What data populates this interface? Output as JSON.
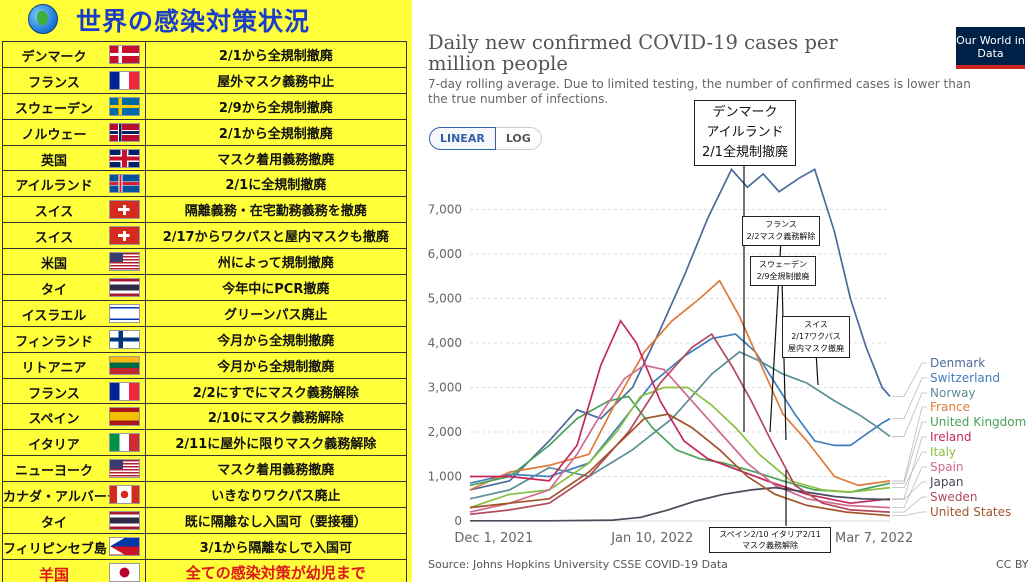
{
  "left_panel": {
    "title": "世界の感染対策状況",
    "rows": [
      {
        "country": "デンマーク",
        "flag": "denmark",
        "measure": "2/1から全規制撤廃"
      },
      {
        "country": "フランス",
        "flag": "france",
        "measure": "屋外マスク義務中止"
      },
      {
        "country": "スウェーデン",
        "flag": "sweden",
        "measure": "2/9から全規制撤廃"
      },
      {
        "country": "ノルウェー",
        "flag": "norway",
        "measure": "2/1から全規制撤廃"
      },
      {
        "country": "英国",
        "flag": "uk",
        "measure": "マスク着用義務撤廃"
      },
      {
        "country": "アイルランド",
        "flag": "iceland",
        "measure": "2/1に全規制撤廃"
      },
      {
        "country": "スイス",
        "flag": "switzerland",
        "measure": "隔離義務・在宅勤務義務を撤廃"
      },
      {
        "country": "スイス",
        "flag": "switzerland",
        "measure": "2/17からワクパスと屋内マスクも撤廃"
      },
      {
        "country": "米国",
        "flag": "usa",
        "measure": "州によって規制撤廃"
      },
      {
        "country": "タイ",
        "flag": "thailand",
        "measure": "今年中にPCR撤廃"
      },
      {
        "country": "イスラエル",
        "flag": "israel",
        "measure": "グリーンパス廃止"
      },
      {
        "country": "フィンランド",
        "flag": "finland",
        "measure": "今月から全規制撤廃"
      },
      {
        "country": "リトアニア",
        "flag": "lithuania",
        "measure": "今月から全規制撤廃"
      },
      {
        "country": "フランス",
        "flag": "france",
        "measure": "2/2にすでにマスク義務解除"
      },
      {
        "country": "スペイン",
        "flag": "spain",
        "measure": "2/10にマスク義務解除"
      },
      {
        "country": "イタリア",
        "flag": "italy",
        "measure": "2/11に屋外に限りマスク義務解除"
      },
      {
        "country": "ニューヨーク",
        "flag": "usa",
        "measure": "マスク着用義務撤廃"
      },
      {
        "country": "カナダ・アルバータ州",
        "flag": "canada",
        "measure": "いきなりワクパス廃止"
      },
      {
        "country": "タイ",
        "flag": "thailand",
        "measure": "既に隔離なし入国可（要接種）"
      },
      {
        "country": "フィリピンセブ島",
        "flag": "philippines",
        "measure": "3/1から隔離なしで入国可"
      },
      {
        "country": "羊国",
        "flag": "japan",
        "measure": "全ての感染対策が幼児まで"
      }
    ]
  },
  "chart_header": {
    "title": "Daily new confirmed COVID-19 cases per million people",
    "subtitle": "7-day rolling average. Due to limited testing, the number of confirmed cases is lower than the true number of infections.",
    "logo": "Our World in Data",
    "scale_linear": "LINEAR",
    "scale_log": "LOG",
    "source": "Source: Johns Hopkins University CSSE COVID-19 Data",
    "license": "CC BY"
  },
  "annotations": {
    "big": [
      "デンマーク",
      "アイルランド",
      "2/1全規制撤廃"
    ],
    "france": [
      "フランス",
      "2/2マスク義務解除"
    ],
    "sweden": [
      "スウェーデン",
      "2/9全規制撤廃"
    ],
    "switzerland": [
      "スイス",
      "2/17ワクパス",
      "屋内マスク撤廃"
    ],
    "spain_italy": [
      "スペイン2/10 イタリア2/11",
      "マスク義務解除"
    ]
  },
  "chart_data": {
    "type": "line",
    "title": "Daily new confirmed COVID-19 cases per million people",
    "ylim": [
      0,
      8000
    ],
    "yticks": [
      0,
      1000,
      2000,
      3000,
      4000,
      5000,
      6000,
      7000
    ],
    "ytick_labels": [
      "0",
      "1,000",
      "2,000",
      "3,000",
      "4,000",
      "5,000",
      "6,000",
      "7,000"
    ],
    "xlim": [
      "2021-11-25",
      "2022-03-11"
    ],
    "xticks": [
      "2021-12-01",
      "2022-01-10",
      "2022-03-07"
    ],
    "xtick_labels": [
      "Dec 1, 2021",
      "Jan 10, 2022",
      "Mar 7, 2022"
    ],
    "legend_position": "right",
    "series": [
      {
        "name": "Denmark",
        "color": "#4c6a9c",
        "points": [
          [
            "2021-11-25",
            700
          ],
          [
            "2021-12-05",
            900
          ],
          [
            "2021-12-15",
            1800
          ],
          [
            "2021-12-22",
            2500
          ],
          [
            "2021-12-28",
            2300
          ],
          [
            "2022-01-05",
            3000
          ],
          [
            "2022-01-12",
            4300
          ],
          [
            "2022-01-18",
            5500
          ],
          [
            "2022-01-24",
            6800
          ],
          [
            "2022-01-30",
            7900
          ],
          [
            "2022-02-03",
            7500
          ],
          [
            "2022-02-07",
            7800
          ],
          [
            "2022-02-11",
            7400
          ],
          [
            "2022-02-16",
            7700
          ],
          [
            "2022-02-20",
            7900
          ],
          [
            "2022-02-25",
            6500
          ],
          [
            "2022-03-01",
            5000
          ],
          [
            "2022-03-05",
            3900
          ],
          [
            "2022-03-09",
            3000
          ],
          [
            "2022-03-11",
            2800
          ]
        ]
      },
      {
        "name": "Switzerland",
        "color": "#3e7dbe",
        "points": [
          [
            "2021-11-25",
            850
          ],
          [
            "2021-12-05",
            1050
          ],
          [
            "2021-12-15",
            1000
          ],
          [
            "2021-12-25",
            1300
          ],
          [
            "2022-01-03",
            2300
          ],
          [
            "2022-01-10",
            3100
          ],
          [
            "2022-01-18",
            3700
          ],
          [
            "2022-01-25",
            4100
          ],
          [
            "2022-01-31",
            4200
          ],
          [
            "2022-02-05",
            3800
          ],
          [
            "2022-02-10",
            3100
          ],
          [
            "2022-02-15",
            2400
          ],
          [
            "2022-02-20",
            1800
          ],
          [
            "2022-02-25",
            1700
          ],
          [
            "2022-03-01",
            1700
          ],
          [
            "2022-03-05",
            1950
          ],
          [
            "2022-03-09",
            2200
          ],
          [
            "2022-03-11",
            2300
          ]
        ]
      },
      {
        "name": "Norway",
        "color": "#5a8f96",
        "points": [
          [
            "2021-11-25",
            500
          ],
          [
            "2021-12-05",
            700
          ],
          [
            "2021-12-15",
            1200
          ],
          [
            "2021-12-25",
            1000
          ],
          [
            "2022-01-05",
            1600
          ],
          [
            "2022-01-15",
            2300
          ],
          [
            "2022-01-25",
            3300
          ],
          [
            "2022-02-01",
            3800
          ],
          [
            "2022-02-06",
            3600
          ],
          [
            "2022-02-12",
            3300
          ],
          [
            "2022-02-18",
            3100
          ],
          [
            "2022-02-25",
            2700
          ],
          [
            "2022-03-03",
            2400
          ],
          [
            "2022-03-08",
            2100
          ],
          [
            "2022-03-11",
            1900
          ]
        ]
      },
      {
        "name": "France",
        "color": "#e07b39",
        "points": [
          [
            "2021-11-25",
            700
          ],
          [
            "2021-12-05",
            1100
          ],
          [
            "2021-12-15",
            1250
          ],
          [
            "2021-12-25",
            1500
          ],
          [
            "2022-01-01",
            2700
          ],
          [
            "2022-01-08",
            3800
          ],
          [
            "2022-01-15",
            4500
          ],
          [
            "2022-01-22",
            5000
          ],
          [
            "2022-01-27",
            5400
          ],
          [
            "2022-02-01",
            4600
          ],
          [
            "2022-02-06",
            3600
          ],
          [
            "2022-02-12",
            2400
          ],
          [
            "2022-02-18",
            1800
          ],
          [
            "2022-02-25",
            1000
          ],
          [
            "2022-03-03",
            800
          ],
          [
            "2022-03-11",
            900
          ]
        ]
      },
      {
        "name": "United Kingdom",
        "color": "#49a15a",
        "points": [
          [
            "2021-11-25",
            800
          ],
          [
            "2021-12-05",
            1000
          ],
          [
            "2021-12-15",
            1700
          ],
          [
            "2021-12-22",
            2300
          ],
          [
            "2021-12-30",
            2700
          ],
          [
            "2022-01-04",
            2800
          ],
          [
            "2022-01-10",
            2100
          ],
          [
            "2022-01-16",
            1600
          ],
          [
            "2022-01-22",
            1400
          ],
          [
            "2022-01-28",
            1300
          ],
          [
            "2022-02-05",
            1100
          ],
          [
            "2022-02-12",
            900
          ],
          [
            "2022-02-20",
            700
          ],
          [
            "2022-03-01",
            650
          ],
          [
            "2022-03-11",
            850
          ]
        ]
      },
      {
        "name": "Ireland",
        "color": "#c4285b",
        "points": [
          [
            "2021-11-25",
            1000
          ],
          [
            "2021-12-05",
            1000
          ],
          [
            "2021-12-15",
            900
          ],
          [
            "2021-12-22",
            1700
          ],
          [
            "2021-12-28",
            3500
          ],
          [
            "2022-01-02",
            4500
          ],
          [
            "2022-01-06",
            4000
          ],
          [
            "2022-01-12",
            2700
          ],
          [
            "2022-01-18",
            1800
          ],
          [
            "2022-01-24",
            1400
          ],
          [
            "2022-01-30",
            1200
          ],
          [
            "2022-02-08",
            900
          ],
          [
            "2022-02-18",
            600
          ],
          [
            "2022-03-01",
            400
          ],
          [
            "2022-03-11",
            500
          ]
        ]
      },
      {
        "name": "Italy",
        "color": "#8ac041",
        "points": [
          [
            "2021-11-25",
            300
          ],
          [
            "2021-12-05",
            600
          ],
          [
            "2021-12-15",
            700
          ],
          [
            "2021-12-25",
            1300
          ],
          [
            "2022-01-01",
            2000
          ],
          [
            "2022-01-07",
            2800
          ],
          [
            "2022-01-13",
            3000
          ],
          [
            "2022-01-19",
            3000
          ],
          [
            "2022-01-25",
            2600
          ],
          [
            "2022-01-31",
            2100
          ],
          [
            "2022-02-06",
            1500
          ],
          [
            "2022-02-14",
            900
          ],
          [
            "2022-02-22",
            700
          ],
          [
            "2022-03-01",
            650
          ],
          [
            "2022-03-11",
            750
          ]
        ]
      },
      {
        "name": "Spain",
        "color": "#d06a8f",
        "points": [
          [
            "2021-11-25",
            200
          ],
          [
            "2021-12-05",
            400
          ],
          [
            "2021-12-15",
            700
          ],
          [
            "2021-12-22",
            1500
          ],
          [
            "2021-12-28",
            2400
          ],
          [
            "2022-01-03",
            3200
          ],
          [
            "2022-01-08",
            3500
          ],
          [
            "2022-01-13",
            3400
          ],
          [
            "2022-01-20",
            2700
          ],
          [
            "2022-01-27",
            2000
          ],
          [
            "2022-02-03",
            1300
          ],
          [
            "2022-02-10",
            800
          ],
          [
            "2022-02-18",
            500
          ],
          [
            "2022-02-28",
            350
          ],
          [
            "2022-03-11",
            300
          ]
        ]
      },
      {
        "name": "Japan",
        "color": "#4a4a5a",
        "points": [
          [
            "2021-11-25",
            5
          ],
          [
            "2021-12-15",
            5
          ],
          [
            "2021-12-31",
            20
          ],
          [
            "2022-01-07",
            80
          ],
          [
            "2022-01-14",
            250
          ],
          [
            "2022-01-21",
            450
          ],
          [
            "2022-01-28",
            600
          ],
          [
            "2022-02-04",
            700
          ],
          [
            "2022-02-10",
            750
          ],
          [
            "2022-02-18",
            650
          ],
          [
            "2022-02-25",
            550
          ],
          [
            "2022-03-04",
            500
          ],
          [
            "2022-03-11",
            480
          ]
        ]
      },
      {
        "name": "Sweden",
        "color": "#b34a5c",
        "points": [
          [
            "2021-11-25",
            150
          ],
          [
            "2021-12-05",
            250
          ],
          [
            "2021-12-15",
            400
          ],
          [
            "2021-12-25",
            1000
          ],
          [
            "2022-01-04",
            2000
          ],
          [
            "2022-01-12",
            3100
          ],
          [
            "2022-01-20",
            3900
          ],
          [
            "2022-01-25",
            4200
          ],
          [
            "2022-01-30",
            3500
          ],
          [
            "2022-02-04",
            2700
          ],
          [
            "2022-02-09",
            1800
          ],
          [
            "2022-02-15",
            800
          ],
          [
            "2022-02-22",
            400
          ],
          [
            "2022-03-01",
            250
          ],
          [
            "2022-03-11",
            200
          ]
        ]
      },
      {
        "name": "United States",
        "color": "#a2552c",
        "points": [
          [
            "2021-11-25",
            300
          ],
          [
            "2021-12-05",
            400
          ],
          [
            "2021-12-15",
            500
          ],
          [
            "2021-12-25",
            1100
          ],
          [
            "2022-01-01",
            1700
          ],
          [
            "2022-01-08",
            2300
          ],
          [
            "2022-01-14",
            2400
          ],
          [
            "2022-01-20",
            2100
          ],
          [
            "2022-01-27",
            1600
          ],
          [
            "2022-02-03",
            1000
          ],
          [
            "2022-02-10",
            600
          ],
          [
            "2022-02-18",
            350
          ],
          [
            "2022-02-28",
            200
          ],
          [
            "2022-03-11",
            120
          ]
        ]
      }
    ]
  }
}
